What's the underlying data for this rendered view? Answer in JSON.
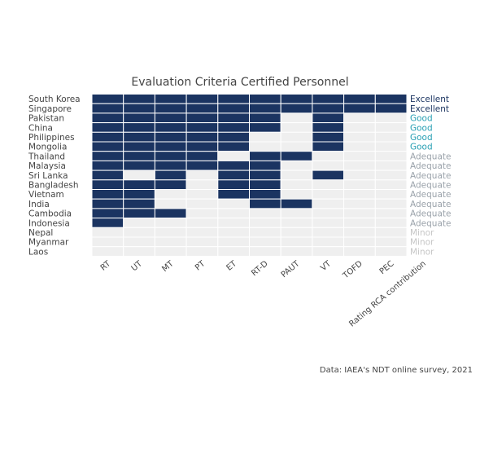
{
  "chart_data": {
    "type": "heatmap",
    "title": "Evaluation Criteria Certified Personnel",
    "columns": [
      "RT",
      "UT",
      "MT",
      "PT",
      "ET",
      "RT-D",
      "PAUT",
      "VT",
      "TOFD",
      "PEC"
    ],
    "rating_column_label": "Rating RCA contribution",
    "rows": [
      "South Korea",
      "Singapore",
      "Pakistan",
      "China",
      "Philippines",
      "Mongolia",
      "Thailand",
      "Malaysia",
      "Sri Lanka",
      "Bangladesh",
      "Vietnam",
      "India",
      "Cambodia",
      "Indonesia",
      "Nepal",
      "Myanmar",
      "Laos"
    ],
    "values": [
      [
        1,
        1,
        1,
        1,
        1,
        1,
        1,
        1,
        1,
        1
      ],
      [
        1,
        1,
        1,
        1,
        1,
        1,
        1,
        1,
        1,
        1
      ],
      [
        1,
        1,
        1,
        1,
        1,
        1,
        0,
        1,
        0,
        0
      ],
      [
        1,
        1,
        1,
        1,
        1,
        1,
        0,
        1,
        0,
        0
      ],
      [
        1,
        1,
        1,
        1,
        1,
        0,
        0,
        1,
        0,
        0
      ],
      [
        1,
        1,
        1,
        1,
        1,
        0,
        0,
        1,
        0,
        0
      ],
      [
        1,
        1,
        1,
        1,
        0,
        1,
        1,
        0,
        0,
        0
      ],
      [
        1,
        1,
        1,
        1,
        1,
        1,
        0,
        0,
        0,
        0
      ],
      [
        1,
        0,
        1,
        0,
        1,
        1,
        0,
        1,
        0,
        0
      ],
      [
        1,
        1,
        1,
        0,
        1,
        1,
        0,
        0,
        0,
        0
      ],
      [
        1,
        1,
        0,
        0,
        1,
        1,
        0,
        0,
        0,
        0
      ],
      [
        1,
        1,
        0,
        0,
        0,
        1,
        1,
        0,
        0,
        0
      ],
      [
        1,
        1,
        1,
        0,
        0,
        0,
        0,
        0,
        0,
        0
      ],
      [
        1,
        0,
        0,
        0,
        0,
        0,
        0,
        0,
        0,
        0
      ],
      [
        0,
        0,
        0,
        0,
        0,
        0,
        0,
        0,
        0,
        0
      ],
      [
        0,
        0,
        0,
        0,
        0,
        0,
        0,
        0,
        0,
        0
      ],
      [
        0,
        0,
        0,
        0,
        0,
        0,
        0,
        0,
        0,
        0
      ]
    ],
    "ratings": [
      "Excellent",
      "Excellent",
      "Good",
      "Good",
      "Good",
      "Good",
      "Adequate",
      "Adequate",
      "Adequate",
      "Adequate",
      "Adequate",
      "Adequate",
      "Adequate",
      "Adequate",
      "Minor",
      "Minor",
      "Minor"
    ],
    "colors": {
      "filled": "#1b3461",
      "empty": "#efefef",
      "grid": "#ffffff",
      "rating": {
        "Excellent": "#1b3461",
        "Good": "#2aa0b4",
        "Adequate": "#9aa2aa",
        "Minor": "#c6c6c6"
      }
    },
    "source": "Data: IAEA's NDT online survey, 2021"
  }
}
